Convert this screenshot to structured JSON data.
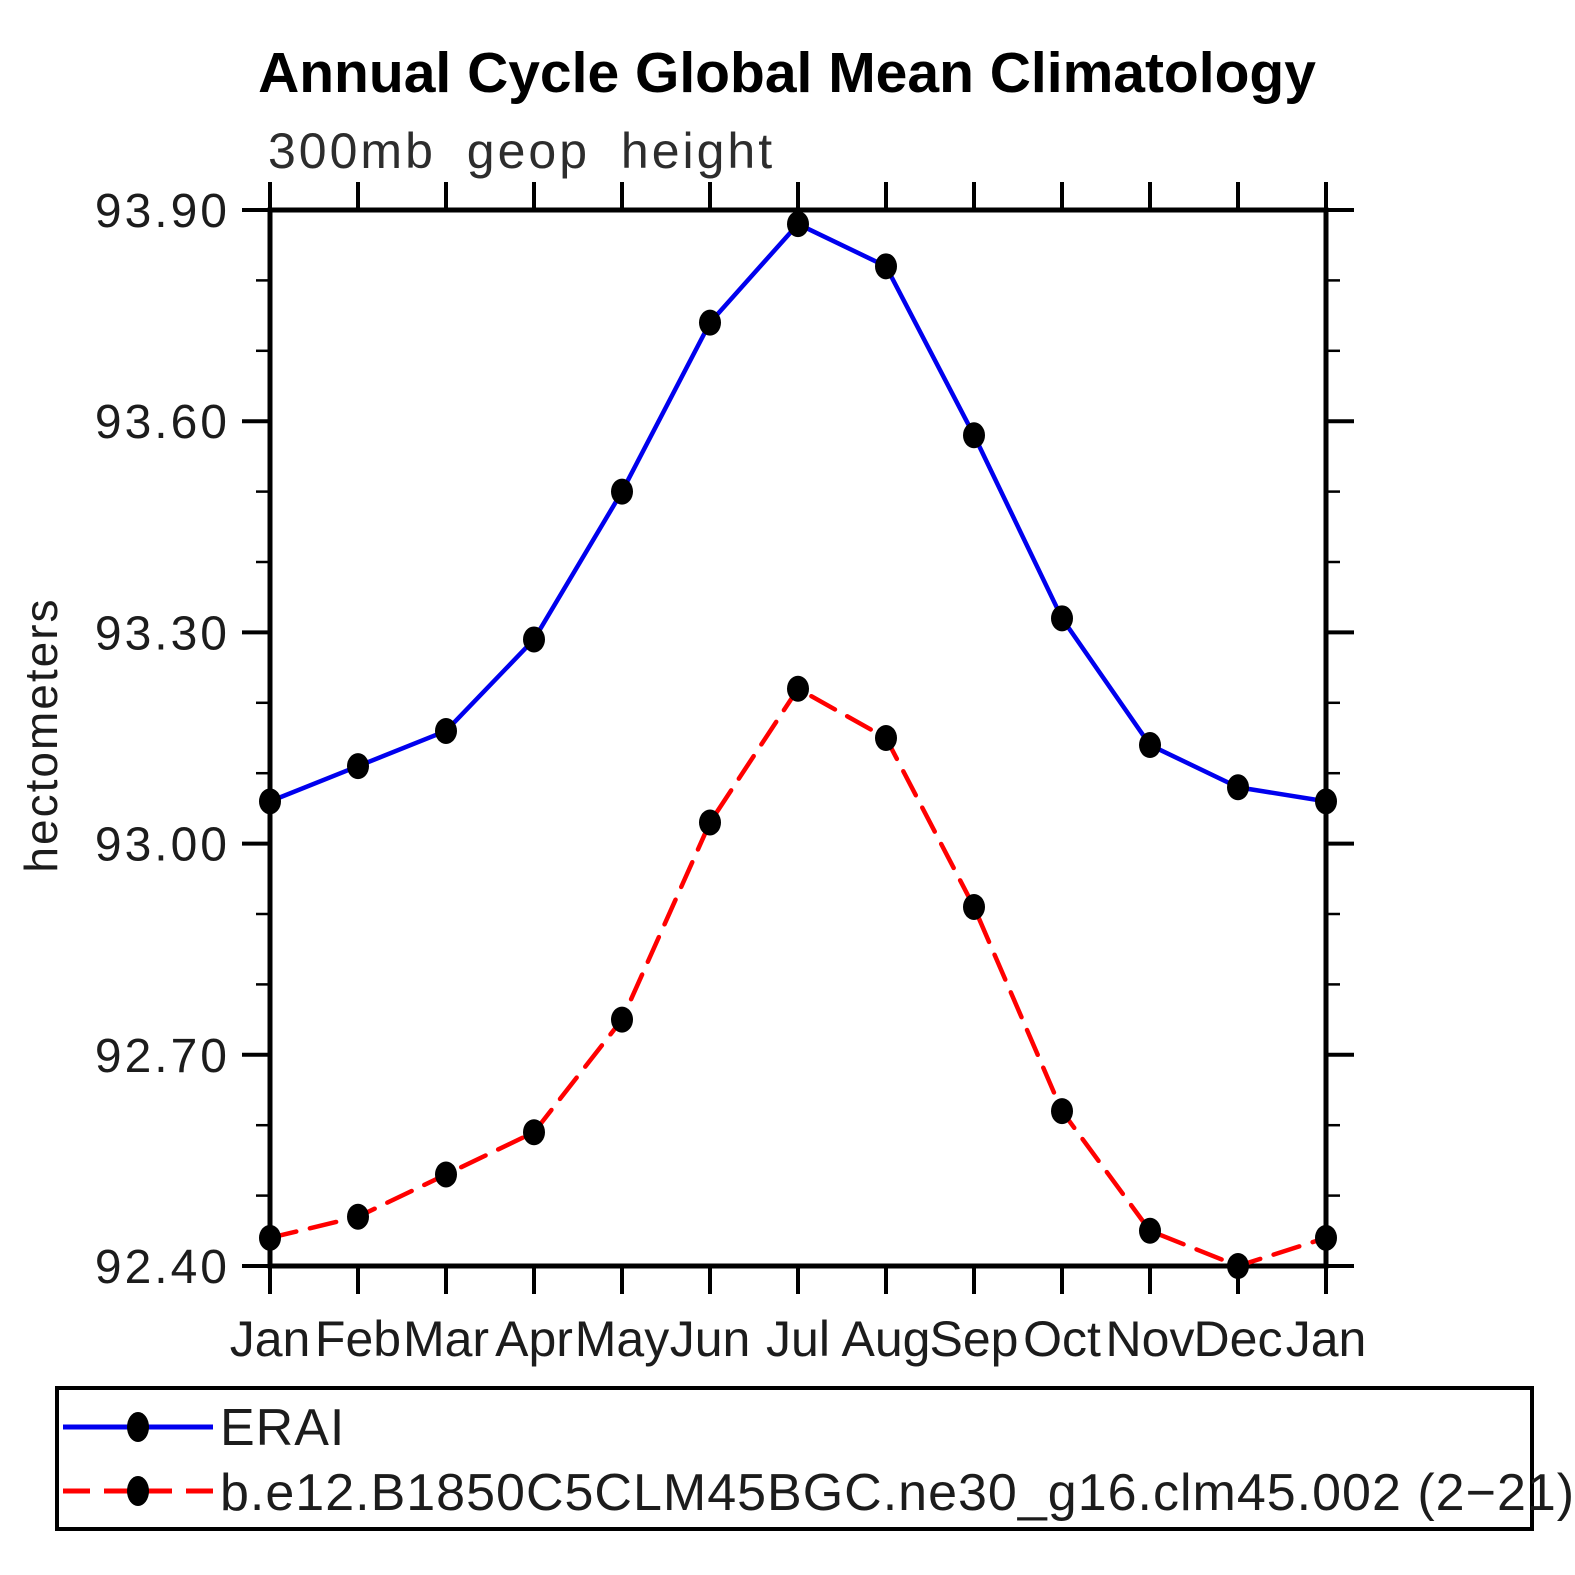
{
  "title": "Annual Cycle Global Mean Climatology",
  "subtitle": "300mb geop height",
  "ylabel": "hectometers",
  "chart_data": {
    "type": "line",
    "x_categories": [
      "Jan",
      "Feb",
      "Mar",
      "Apr",
      "May",
      "Jun",
      "Jul",
      "Aug",
      "Sep",
      "Oct",
      "Nov",
      "Dec",
      "Jan"
    ],
    "series": [
      {
        "name": "ERAI",
        "color": "#0000ee",
        "line_style": "solid",
        "marker": "filled-circle",
        "marker_color": "#000000",
        "values": [
          93.06,
          93.11,
          93.16,
          93.29,
          93.5,
          93.74,
          93.88,
          93.82,
          93.58,
          93.32,
          93.14,
          93.08,
          93.06
        ]
      },
      {
        "name": "b.e12.B1850C5CLM45BGC.ne30_g16.clm45.002 (2−21)",
        "color": "#ff0000",
        "line_style": "dashed",
        "marker": "filled-circle",
        "marker_color": "#000000",
        "values": [
          92.44,
          92.47,
          92.53,
          92.59,
          92.75,
          93.03,
          93.22,
          93.15,
          92.91,
          92.62,
          92.45,
          92.4,
          92.44
        ]
      }
    ],
    "ylim": [
      92.4,
      93.9
    ],
    "ytick_labels": [
      "92.40",
      "92.70",
      "93.00",
      "93.30",
      "93.60",
      "93.90"
    ],
    "ytick_major_step": 0.3,
    "ytick_minor_step": 0.1,
    "grid": false,
    "legend_position": "bottom"
  }
}
